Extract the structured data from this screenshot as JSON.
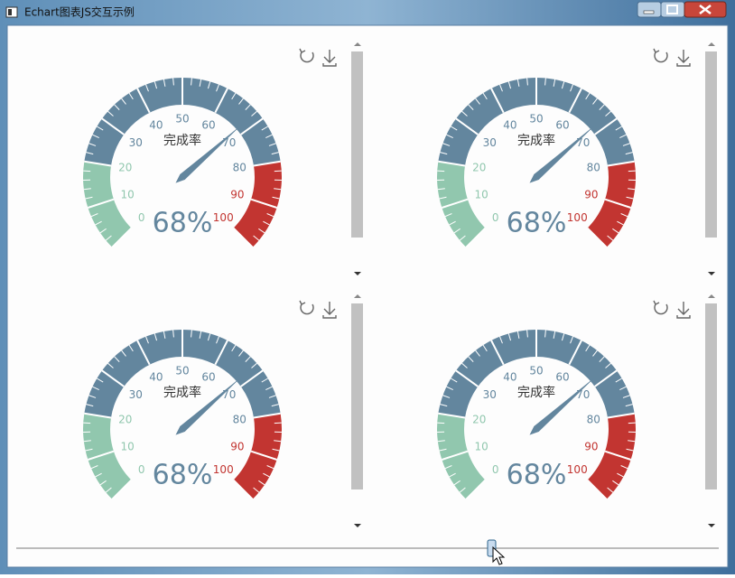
{
  "window": {
    "title": "Echart图表JS交互示例"
  },
  "chart_data": [
    {
      "type": "gauge",
      "title": "完成率",
      "values": [
        68
      ],
      "value_labels": [
        "68%"
      ],
      "ylim": [
        0,
        100
      ],
      "yticks": [
        0,
        10,
        20,
        30,
        40,
        50,
        60,
        70,
        80,
        90,
        100
      ],
      "segments": [
        {
          "to": 20,
          "color": "#91c7ae"
        },
        {
          "to": 80,
          "color": "#63869e"
        },
        {
          "to": 100,
          "color": "#c23531"
        }
      ],
      "pointer_color": "#63869e"
    },
    {
      "type": "gauge",
      "title": "完成率",
      "values": [
        68
      ],
      "value_labels": [
        "68%"
      ],
      "ylim": [
        0,
        100
      ],
      "yticks": [
        0,
        10,
        20,
        30,
        40,
        50,
        60,
        70,
        80,
        90,
        100
      ],
      "segments": [
        {
          "to": 20,
          "color": "#91c7ae"
        },
        {
          "to": 80,
          "color": "#63869e"
        },
        {
          "to": 100,
          "color": "#c23531"
        }
      ],
      "pointer_color": "#63869e"
    },
    {
      "type": "gauge",
      "title": "完成率",
      "values": [
        68
      ],
      "value_labels": [
        "68%"
      ],
      "ylim": [
        0,
        100
      ],
      "yticks": [
        0,
        10,
        20,
        30,
        40,
        50,
        60,
        70,
        80,
        90,
        100
      ],
      "segments": [
        {
          "to": 20,
          "color": "#91c7ae"
        },
        {
          "to": 80,
          "color": "#63869e"
        },
        {
          "to": 100,
          "color": "#c23531"
        }
      ],
      "pointer_color": "#63869e"
    },
    {
      "type": "gauge",
      "title": "完成率",
      "values": [
        68
      ],
      "value_labels": [
        "68%"
      ],
      "ylim": [
        0,
        100
      ],
      "yticks": [
        0,
        10,
        20,
        30,
        40,
        50,
        60,
        70,
        80,
        90,
        100
      ],
      "segments": [
        {
          "to": 20,
          "color": "#91c7ae"
        },
        {
          "to": 80,
          "color": "#63869e"
        },
        {
          "to": 100,
          "color": "#c23531"
        }
      ],
      "pointer_color": "#63869e"
    }
  ]
}
